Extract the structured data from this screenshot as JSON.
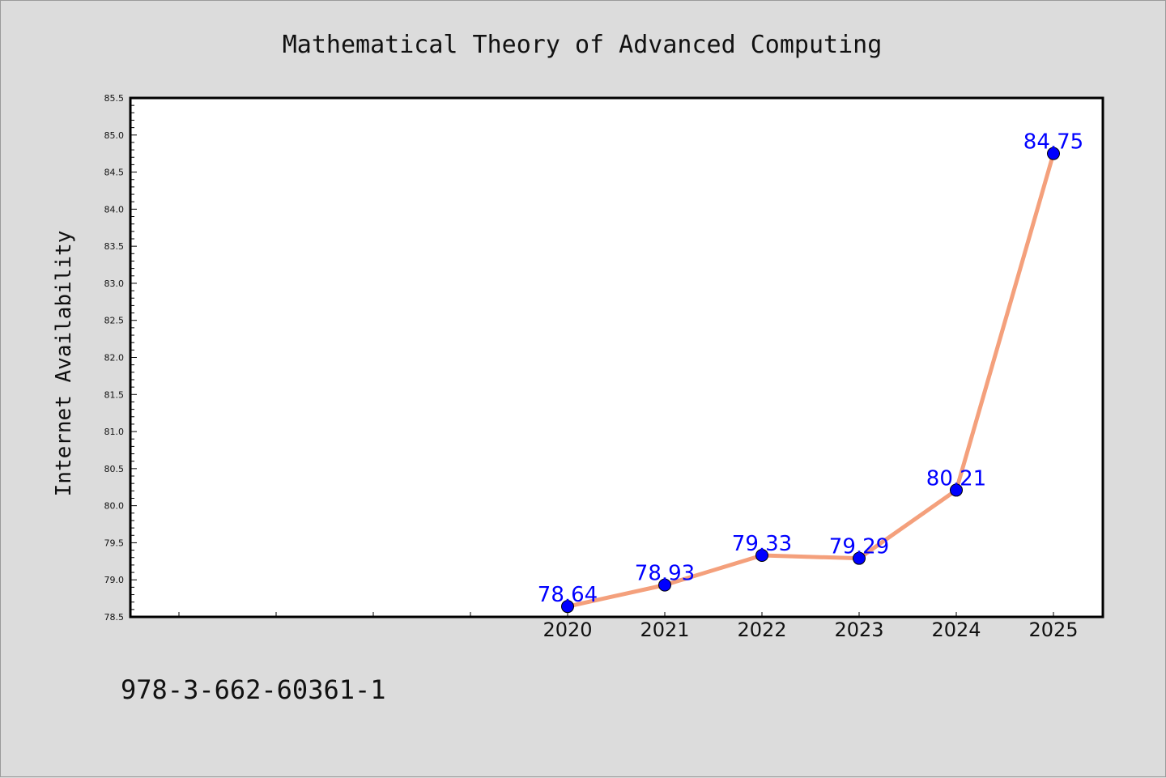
{
  "chart_data": {
    "type": "line",
    "title": "Mathematical Theory of Advanced Computing",
    "xlabel": "",
    "ylabel": "Internet Availability",
    "categories": [
      "2020",
      "2021",
      "2022",
      "2023",
      "2024",
      "2025"
    ],
    "x_ticks_unlabeled": 4,
    "series": [
      {
        "values": [
          78.64,
          78.93,
          79.33,
          79.29,
          80.21,
          84.75
        ]
      }
    ],
    "data_labels": [
      "78.64",
      "78.93",
      "79.33",
      "79.29",
      "80.21",
      "84.75"
    ],
    "ylim": [
      78.5,
      85.5
    ],
    "yticks": [
      "78.5",
      "79.0",
      "79.5",
      "80.0",
      "80.5",
      "81.0",
      "81.5",
      "82.0",
      "82.5",
      "83.0",
      "83.5",
      "84.0",
      "84.5",
      "85.0",
      "85.5"
    ],
    "grid": false,
    "legend": "none",
    "colors": {
      "line": "#f4a07c",
      "marker": "#0000ff",
      "label": "#0000ff",
      "background": "#dcdcdc",
      "plot_background": "#ffffff"
    }
  },
  "footer": {
    "code": "978-3-662-60361-1"
  }
}
